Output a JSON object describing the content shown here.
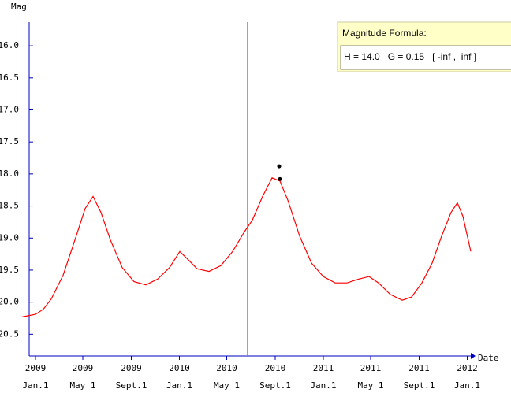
{
  "chart_data": {
    "type": "line",
    "y_label": "Mag",
    "x_label": "Date",
    "legend_title": "Magnitude Formula:",
    "legend_formula": "H = 14.0   G = 0.15   [ -inf ,  inf ]",
    "ylim": [
      15.63,
      20.84
    ],
    "y_reversed": true,
    "yticks": [
      {
        "value": 16.0,
        "label": "16.0"
      },
      {
        "value": 16.5,
        "label": "16.5"
      },
      {
        "value": 17.0,
        "label": "17.0"
      },
      {
        "value": 17.5,
        "label": "17.5"
      },
      {
        "value": 18.0,
        "label": "18.0"
      },
      {
        "value": 18.5,
        "label": "18.5"
      },
      {
        "value": 19.0,
        "label": "19.0"
      },
      {
        "value": 19.5,
        "label": "19.5"
      },
      {
        "value": 20.0,
        "label": "20.0"
      },
      {
        "value": 20.5,
        "label": "20.5"
      }
    ],
    "xlim": [
      "2008-12-16",
      "2012-01-10"
    ],
    "xticks": [
      {
        "value": "2009-01-01",
        "label": [
          "2009",
          "Jan.1"
        ]
      },
      {
        "value": "2009-05-01",
        "label": [
          "2009",
          "May 1"
        ]
      },
      {
        "value": "2009-09-01",
        "label": [
          "2009",
          "Sept.1"
        ]
      },
      {
        "value": "2010-01-01",
        "label": [
          "2010",
          "Jan.1"
        ]
      },
      {
        "value": "2010-05-01",
        "label": [
          "2010",
          "May 1"
        ]
      },
      {
        "value": "2010-09-01",
        "label": [
          "2010",
          "Sept.1"
        ]
      },
      {
        "value": "2011-01-01",
        "label": [
          "2011",
          "Jan.1"
        ]
      },
      {
        "value": "2011-05-01",
        "label": [
          "2011",
          "May 1"
        ]
      },
      {
        "value": "2011-09-01",
        "label": [
          "2011",
          "Sept.1"
        ]
      },
      {
        "value": "2012-01-01",
        "label": [
          "2012",
          "Jan.1"
        ]
      }
    ],
    "marker_date": "2010-06-23",
    "marker_color": "#e040e0",
    "axis_color": "#0000c0",
    "series": [
      {
        "color": "#ff0000",
        "x": [
          "2008-11-28",
          "2009-01-01",
          "2009-01-21",
          "2009-02-10",
          "2009-03-12",
          "2009-04-11",
          "2009-05-07",
          "2009-05-27",
          "2009-06-16",
          "2009-07-10",
          "2009-08-09",
          "2009-09-08",
          "2009-10-08",
          "2009-11-07",
          "2009-12-07",
          "2010-01-02",
          "2010-01-22",
          "2010-02-15",
          "2010-03-17",
          "2010-04-16",
          "2010-05-16",
          "2010-06-15",
          "2010-07-05",
          "2010-07-31",
          "2010-08-24",
          "2010-09-13",
          "2010-10-03",
          "2010-11-02",
          "2010-12-02",
          "2011-01-01",
          "2011-01-31",
          "2011-03-02",
          "2011-04-01",
          "2011-04-27",
          "2011-05-21",
          "2011-06-20",
          "2011-07-20",
          "2011-08-13",
          "2011-09-08",
          "2011-10-04",
          "2011-10-28",
          "2011-11-21",
          "2011-12-07",
          "2011-12-21",
          "2012-01-10"
        ],
        "values": [
          20.23,
          20.19,
          20.11,
          19.95,
          19.58,
          19.03,
          18.54,
          18.35,
          18.6,
          19.03,
          19.46,
          19.68,
          19.73,
          19.64,
          19.46,
          19.21,
          19.33,
          19.48,
          19.52,
          19.43,
          19.21,
          18.9,
          18.72,
          18.35,
          18.06,
          18.11,
          18.41,
          18.97,
          19.39,
          19.6,
          19.7,
          19.7,
          19.64,
          19.6,
          19.7,
          19.88,
          19.97,
          19.92,
          19.7,
          19.39,
          18.97,
          18.6,
          18.45,
          18.66,
          19.21
        ]
      },
      {
        "type": "scatter",
        "color": "#000000",
        "x": [
          "2010-09-11",
          "2010-09-13"
        ],
        "values": [
          17.88,
          18.08
        ]
      }
    ]
  }
}
